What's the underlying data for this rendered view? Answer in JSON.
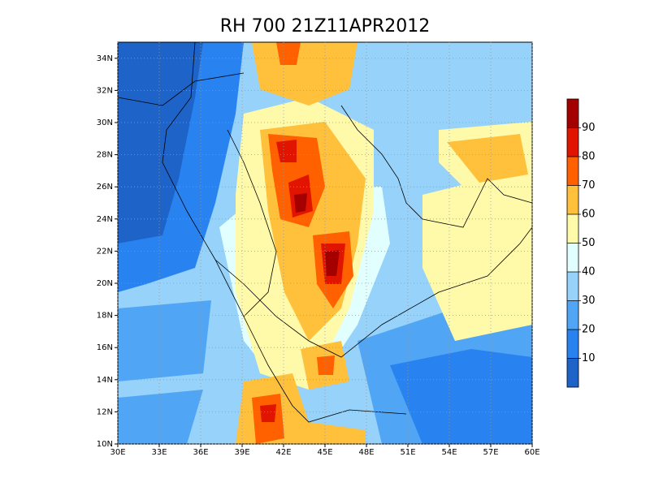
{
  "title": "RH 700 21Z11APR2012",
  "map": {
    "lon_range": [
      30,
      60
    ],
    "lat_range": [
      10,
      35
    ],
    "lon_ticks": [
      {
        "value": 30,
        "label": "30E"
      },
      {
        "value": 33,
        "label": "33E"
      },
      {
        "value": 36,
        "label": "36E"
      },
      {
        "value": 39,
        "label": "39E"
      },
      {
        "value": 42,
        "label": "42E"
      },
      {
        "value": 45,
        "label": "45E"
      },
      {
        "value": 48,
        "label": "48E"
      },
      {
        "value": 51,
        "label": "51E"
      },
      {
        "value": 54,
        "label": "54E"
      },
      {
        "value": 57,
        "label": "57E"
      },
      {
        "value": 60,
        "label": "60E"
      }
    ],
    "lat_ticks": [
      {
        "value": 10,
        "label": "10N"
      },
      {
        "value": 12,
        "label": "12N"
      },
      {
        "value": 14,
        "label": "14N"
      },
      {
        "value": 16,
        "label": "16N"
      },
      {
        "value": 18,
        "label": "18N"
      },
      {
        "value": 20,
        "label": "20N"
      },
      {
        "value": 22,
        "label": "22N"
      },
      {
        "value": 24,
        "label": "24N"
      },
      {
        "value": 26,
        "label": "26N"
      },
      {
        "value": 28,
        "label": "28N"
      },
      {
        "value": 30,
        "label": "30N"
      },
      {
        "value": 32,
        "label": "32N"
      },
      {
        "value": 34,
        "label": "34N"
      }
    ],
    "grid": true
  },
  "colorbar": {
    "lim": [
      0,
      100
    ],
    "ticks": [
      10,
      20,
      30,
      40,
      50,
      60,
      70,
      80,
      90
    ],
    "colors": [
      "#1e64c8",
      "#2882f0",
      "#50a5f5",
      "#96d2fa",
      "#e1ffff",
      "#fffaaa",
      "#ffc03c",
      "#ff6000",
      "#e11400",
      "#a50000"
    ]
  }
}
